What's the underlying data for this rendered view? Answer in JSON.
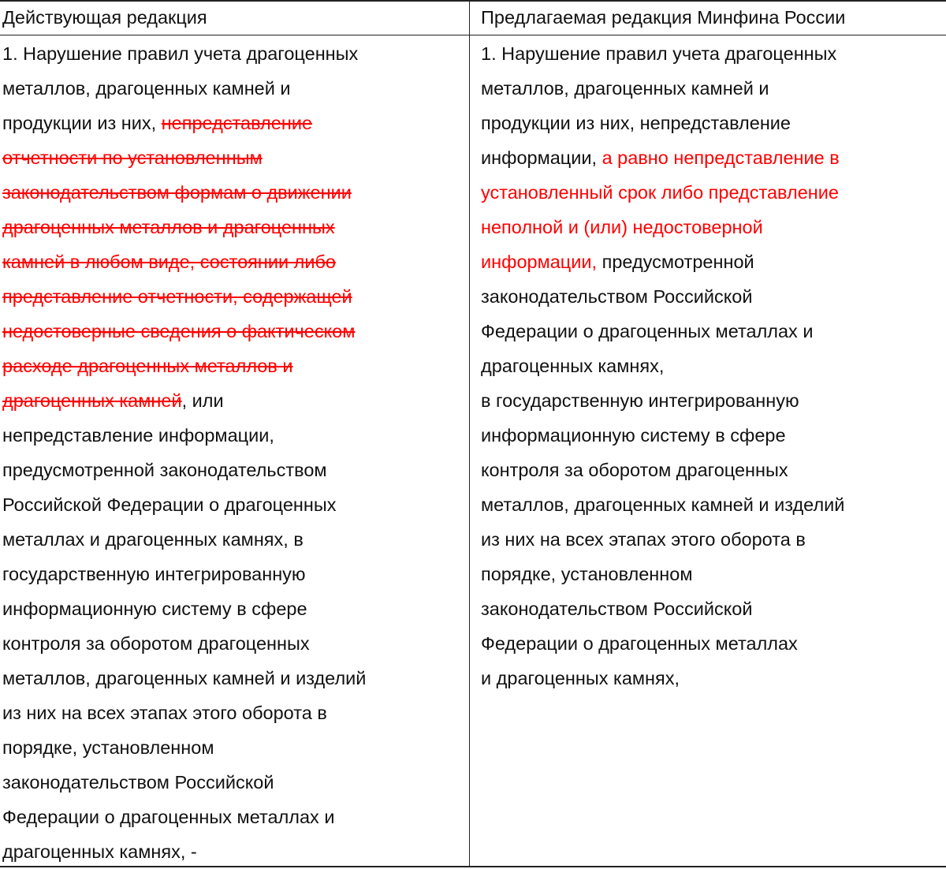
{
  "header": {
    "left": "Действующая редакция",
    "right": "Предлагаемая редакция Минфина России"
  },
  "colors": {
    "border": "#222222",
    "changed_text": "#ff0000",
    "text": "#111111"
  },
  "left_lines": [
    [
      {
        "t": "1. Нарушение правил учета драгоценных",
        "s": "normal"
      }
    ],
    [
      {
        "t": "металлов, драгоценных камней и",
        "s": "normal"
      }
    ],
    [
      {
        "t": "продукции из них, ",
        "s": "normal"
      },
      {
        "t": "непредставление",
        "s": "deleted"
      }
    ],
    [
      {
        "t": "отчетности по установленным",
        "s": "deleted"
      }
    ],
    [
      {
        "t": "законодательством формам о движении",
        "s": "deleted"
      }
    ],
    [
      {
        "t": "драгоценных металлов и драгоценных",
        "s": "deleted"
      }
    ],
    [
      {
        "t": "камней в любом виде, состоянии либо",
        "s": "deleted"
      }
    ],
    [
      {
        "t": "представление отчетности, содержащей",
        "s": "deleted"
      }
    ],
    [
      {
        "t": "недостоверные сведения о фактическом",
        "s": "deleted"
      }
    ],
    [
      {
        "t": "расходе драгоценных металлов и",
        "s": "deleted"
      }
    ],
    [
      {
        "t": "драгоценных камней",
        "s": "deleted"
      },
      {
        "t": ", или",
        "s": "normal"
      }
    ],
    [
      {
        "t": "непредставление информации,",
        "s": "normal"
      }
    ],
    [
      {
        "t": "предусмотренной законодательством",
        "s": "normal"
      }
    ],
    [
      {
        "t": "Российской Федерации о драгоценных",
        "s": "normal"
      }
    ],
    [
      {
        "t": "металлах и драгоценных камнях, в",
        "s": "normal"
      }
    ],
    [
      {
        "t": "государственную интегрированную",
        "s": "normal"
      }
    ],
    [
      {
        "t": "информационную систему в сфере",
        "s": "normal"
      }
    ],
    [
      {
        "t": "контроля за оборотом драгоценных",
        "s": "normal"
      }
    ],
    [
      {
        "t": "металлов, драгоценных камней и изделий",
        "s": "normal"
      }
    ],
    [
      {
        "t": "из них на всех этапах этого оборота в",
        "s": "normal"
      }
    ],
    [
      {
        "t": "порядке, установленном",
        "s": "normal"
      }
    ],
    [
      {
        "t": "законодательством Российской",
        "s": "normal"
      }
    ],
    [
      {
        "t": "Федерации о драгоценных металлах и",
        "s": "normal"
      }
    ],
    [
      {
        "t": "драгоценных камнях, -",
        "s": "normal"
      }
    ]
  ],
  "right_lines": [
    [
      {
        "t": "1. Нарушение правил учета драгоценных",
        "s": "normal"
      }
    ],
    [
      {
        "t": "металлов, драгоценных камней и",
        "s": "normal"
      }
    ],
    [
      {
        "t": "продукции из них, непредставление",
        "s": "normal"
      }
    ],
    [
      {
        "t": "информации, ",
        "s": "normal"
      },
      {
        "t": "а равно непредставление в",
        "s": "added"
      }
    ],
    [
      {
        "t": "установленный срок либо представление",
        "s": "added"
      }
    ],
    [
      {
        "t": "неполной и (или) недостоверной",
        "s": "added"
      }
    ],
    [
      {
        "t": "информации,",
        "s": "added"
      },
      {
        "t": " предусмотренной",
        "s": "normal"
      }
    ],
    [
      {
        "t": "законодательством Российской",
        "s": "normal"
      }
    ],
    [
      {
        "t": "Федерации о драгоценных металлах и",
        "s": "normal"
      }
    ],
    [
      {
        "t": "драгоценных камнях,",
        "s": "normal"
      }
    ],
    [
      {
        "t": "в государственную интегрированную",
        "s": "normal"
      }
    ],
    [
      {
        "t": "информационную систему в сфере",
        "s": "normal"
      }
    ],
    [
      {
        "t": "контроля за оборотом драгоценных",
        "s": "normal"
      }
    ],
    [
      {
        "t": "металлов, драгоценных камней и изделий",
        "s": "normal"
      }
    ],
    [
      {
        "t": "из них на всех этапах этого оборота в",
        "s": "normal"
      }
    ],
    [
      {
        "t": "порядке, установленном",
        "s": "normal"
      }
    ],
    [
      {
        "t": "законодательством Российской",
        "s": "normal"
      }
    ],
    [
      {
        "t": "Федерации о драгоценных металлах",
        "s": "normal"
      }
    ],
    [
      {
        "t": "и драгоценных камнях,",
        "s": "normal"
      }
    ]
  ]
}
